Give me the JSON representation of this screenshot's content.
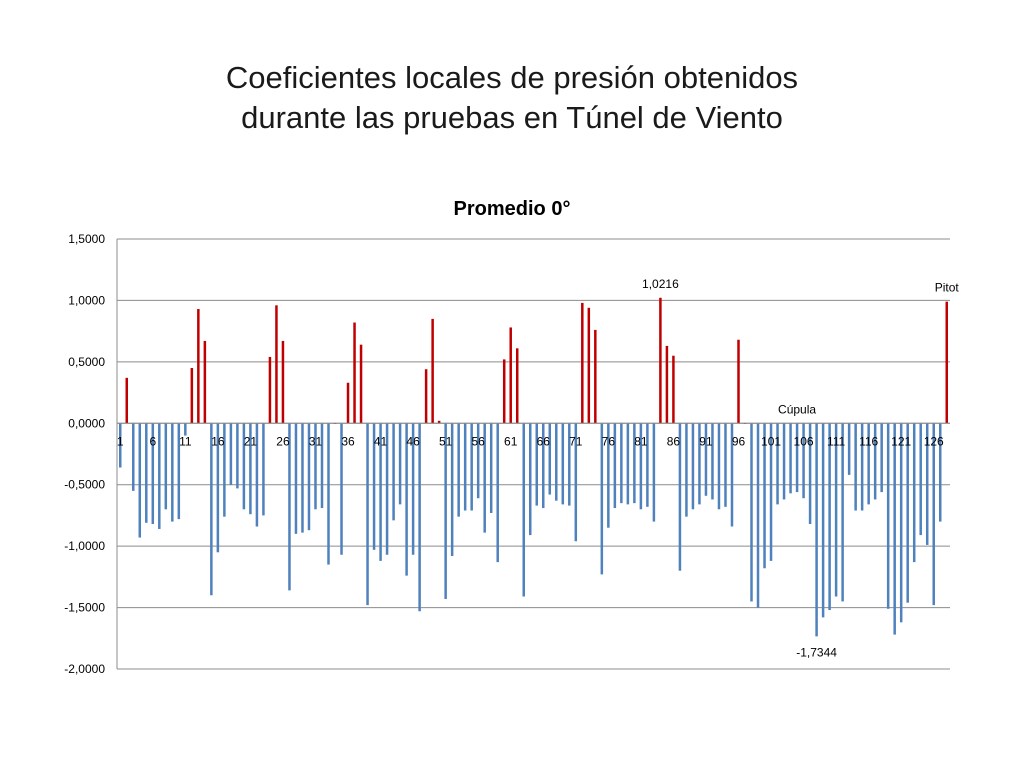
{
  "slide": {
    "title_line1": "Coeficientes locales de presión  obtenidos",
    "title_line2": "durante las pruebas en Túnel de Viento"
  },
  "chart_data": {
    "type": "bar",
    "title": "Promedio 0°",
    "xlabel": "",
    "ylabel": "",
    "ylim": [
      -2.0,
      1.5
    ],
    "yticks": [
      "1,5000",
      "1,0000",
      "0,5000",
      "0,0000",
      "-0,5000",
      "-1,0000",
      "-1,5000",
      "-2,0000"
    ],
    "ytick_values": [
      1.5,
      1.0,
      0.5,
      0.0,
      -0.5,
      -1.0,
      -1.5,
      -2.0
    ],
    "xtick_labels": [
      "1",
      "6",
      "11",
      "16",
      "21",
      "26",
      "31",
      "36",
      "41",
      "46",
      "51",
      "56",
      "61",
      "66",
      "71",
      "76",
      "81",
      "86",
      "91",
      "96",
      "101",
      "106",
      "111",
      "116",
      "121",
      "126"
    ],
    "grid": "horizontal",
    "colors": {
      "positive": "#c00000",
      "negative": "#4f81bd"
    },
    "categories_count": 128,
    "values": [
      -0.36,
      0.37,
      -0.55,
      -0.93,
      -0.81,
      -0.82,
      -0.86,
      -0.7,
      -0.8,
      -0.78,
      -0.1,
      0.45,
      0.93,
      0.67,
      -1.4,
      -1.05,
      -0.76,
      -0.5,
      -0.53,
      -0.7,
      -0.74,
      -0.84,
      -0.75,
      0.54,
      0.96,
      0.67,
      -1.36,
      -0.9,
      -0.89,
      -0.87,
      -0.7,
      -0.69,
      -1.15,
      0.0,
      -1.07,
      0.33,
      0.82,
      0.64,
      -1.48,
      -1.03,
      -1.12,
      -1.07,
      -0.79,
      -0.66,
      -1.24,
      -1.07,
      -1.53,
      0.44,
      0.85,
      0.02,
      -1.43,
      -1.08,
      -0.76,
      -0.71,
      -0.71,
      -0.61,
      -0.89,
      -0.73,
      -1.13,
      0.52,
      0.78,
      0.61,
      -1.41,
      -0.91,
      -0.67,
      -0.69,
      -0.58,
      -0.63,
      -0.66,
      -0.67,
      -0.96,
      0.98,
      0.94,
      0.76,
      -1.23,
      -0.85,
      -0.69,
      -0.65,
      -0.66,
      -0.65,
      -0.7,
      -0.68,
      -0.8,
      1.0216,
      0.63,
      0.55,
      -1.2,
      -0.76,
      -0.7,
      -0.66,
      -0.59,
      -0.62,
      -0.7,
      -0.68,
      -0.84,
      0.68,
      0.0,
      -1.45,
      -1.5,
      -1.18,
      -1.12,
      -0.66,
      -0.62,
      -0.57,
      -0.56,
      -0.61,
      -0.82,
      -1.7344,
      -1.58,
      -1.52,
      -1.41,
      -1.45,
      -0.42,
      -0.71,
      -0.71,
      -0.66,
      -0.62,
      -0.56,
      -1.51,
      -1.72,
      -1.62,
      -1.46,
      -1.13,
      -0.91,
      -0.99,
      -1.48,
      -0.8,
      0.99
    ],
    "annotations": [
      {
        "text": "1,0216",
        "index": 84
      },
      {
        "text": "Pitot",
        "index": 128
      },
      {
        "text": "Cúpula",
        "index": 105
      },
      {
        "text": "-1,7344",
        "index": 108
      }
    ]
  }
}
